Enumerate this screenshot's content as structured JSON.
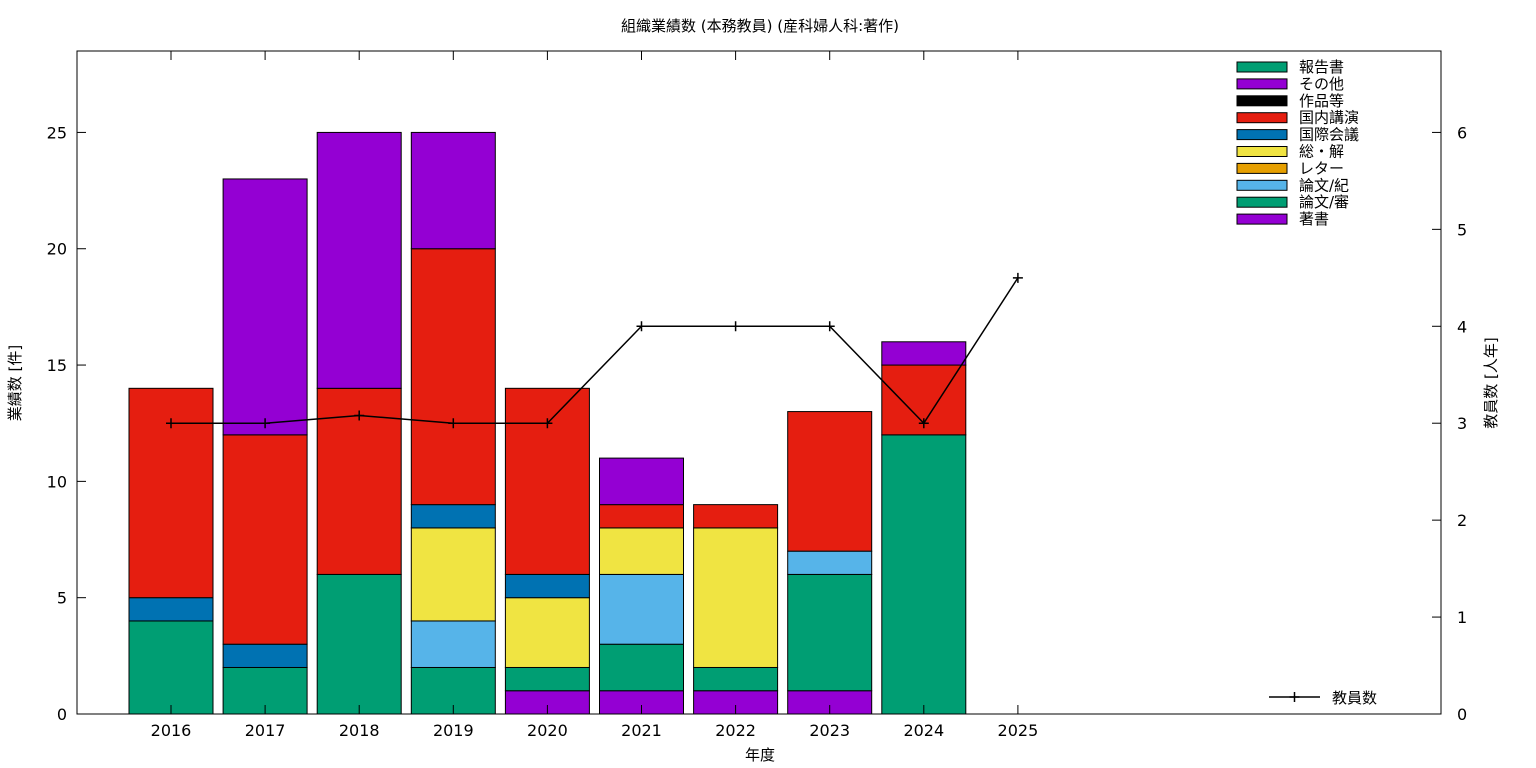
{
  "chart_data": {
    "type": "bar",
    "stacked": true,
    "title": "組織業績数 (本務教員) (産科婦人科:著作)",
    "xlabel": "年度",
    "ylabel": "業績数 [件]",
    "y2label": "教員数 [人年]",
    "categories": [
      "2016",
      "2017",
      "2018",
      "2019",
      "2020",
      "2021",
      "2022",
      "2023",
      "2024",
      "2025"
    ],
    "ylim": [
      0,
      28.5
    ],
    "y2lim": [
      0,
      6.84
    ],
    "yticks": [
      0,
      5,
      10,
      15,
      20,
      25
    ],
    "y2ticks": [
      0,
      1,
      2,
      3,
      4,
      5,
      6
    ],
    "grid": false,
    "legend_position": "top-right",
    "series": [
      {
        "name": "著書",
        "color": "#9400d3",
        "values": [
          0,
          0,
          0,
          0,
          1,
          1,
          1,
          1,
          0,
          0
        ]
      },
      {
        "name": "論文/審",
        "color": "#009e73",
        "values": [
          4,
          2,
          6,
          2,
          1,
          2,
          1,
          5,
          12,
          0
        ]
      },
      {
        "name": "論文/紀",
        "color": "#56b4e9",
        "values": [
          0,
          0,
          0,
          2,
          0,
          3,
          0,
          1,
          0,
          0
        ]
      },
      {
        "name": "レター",
        "color": "#e69f00",
        "values": [
          0,
          0,
          0,
          0,
          0,
          0,
          0,
          0,
          0,
          0
        ]
      },
      {
        "name": "総・解",
        "color": "#f0e442",
        "values": [
          0,
          0,
          0,
          4,
          3,
          2,
          6,
          0,
          0,
          0
        ]
      },
      {
        "name": "国際会議",
        "color": "#0072b2",
        "values": [
          1,
          1,
          0,
          1,
          1,
          0,
          0,
          0,
          0,
          0
        ]
      },
      {
        "name": "国内講演",
        "color": "#e51e10",
        "values": [
          9,
          9,
          8,
          11,
          8,
          1,
          1,
          6,
          3,
          0
        ]
      },
      {
        "name": "作品等",
        "color": "#000000",
        "values": [
          0,
          0,
          0,
          0,
          0,
          0,
          0,
          0,
          0,
          0
        ]
      },
      {
        "name": "その他",
        "color": "#9400d3",
        "values": [
          0,
          11,
          11,
          5,
          0,
          2,
          0,
          0,
          1,
          0
        ]
      },
      {
        "name": "報告書",
        "color": "#009e73",
        "values": [
          0,
          0,
          0,
          0,
          0,
          0,
          0,
          0,
          0,
          0
        ]
      }
    ],
    "legend_order": [
      "報告書",
      "その他",
      "作品等",
      "国内講演",
      "国際会議",
      "総・解",
      "レター",
      "論文/紀",
      "論文/審",
      "著書"
    ],
    "line": {
      "name": "教員数",
      "axis": "y2",
      "color": "#000000",
      "values": [
        3,
        3,
        3.08,
        3,
        3,
        4,
        4,
        4,
        3,
        4.5
      ]
    }
  }
}
